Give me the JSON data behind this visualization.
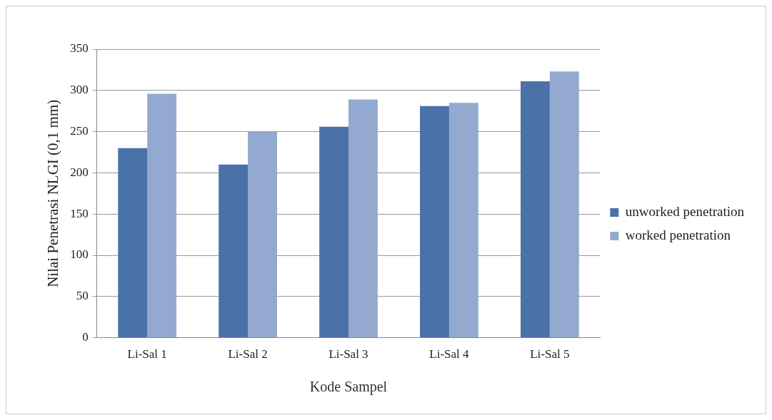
{
  "chart_data": {
    "type": "bar",
    "xlabel": "Kode Sampel",
    "ylabel": "Nilai Penetrasi NLGI (0,1 mm)",
    "categories": [
      "Li-Sal 1",
      "Li-Sal 2",
      "Li-Sal 3",
      "Li-Sal 4",
      "Li-Sal 5"
    ],
    "series": [
      {
        "name": "unworked penetration",
        "color": "#4a72a8",
        "values": [
          230,
          210,
          256,
          281,
          311
        ]
      },
      {
        "name": "worked penetration",
        "color": "#93a9cf",
        "values": [
          296,
          250,
          289,
          285,
          323
        ]
      }
    ],
    "ylim": [
      0,
      350
    ],
    "yticks": [
      0,
      50,
      100,
      150,
      200,
      250,
      300,
      350
    ],
    "grid": "y",
    "legend": "right"
  }
}
